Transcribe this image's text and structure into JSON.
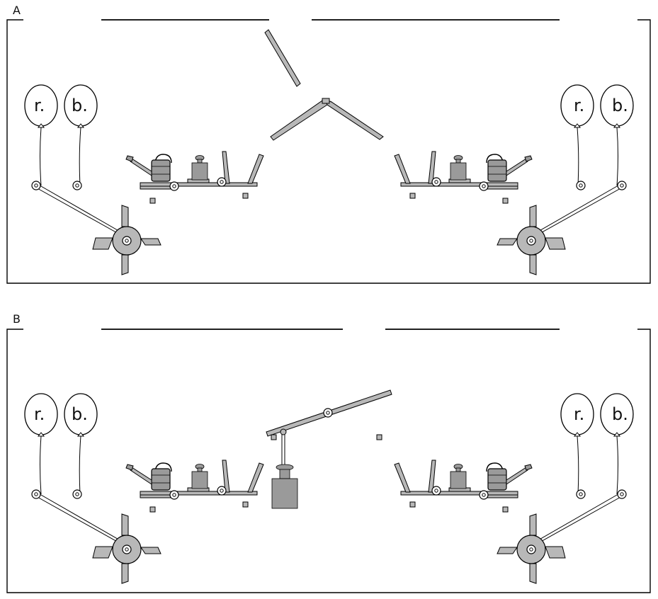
{
  "panels": [
    {
      "id": "A",
      "label": "A",
      "middle": "plank"
    },
    {
      "id": "B",
      "label": "B",
      "middle": "lever"
    }
  ],
  "balloon_labels": {
    "red": "r.",
    "blue": "b."
  },
  "colors": {
    "outline": "#000000",
    "part_fill": "#b8b8b8",
    "part_dark": "#8f8f8f",
    "balloon_fill": "#ffffff"
  },
  "icons": [
    "balloon-icon",
    "watering-can-icon",
    "weight-icon",
    "wheel-icon",
    "pivot-icon",
    "basket-icon"
  ]
}
